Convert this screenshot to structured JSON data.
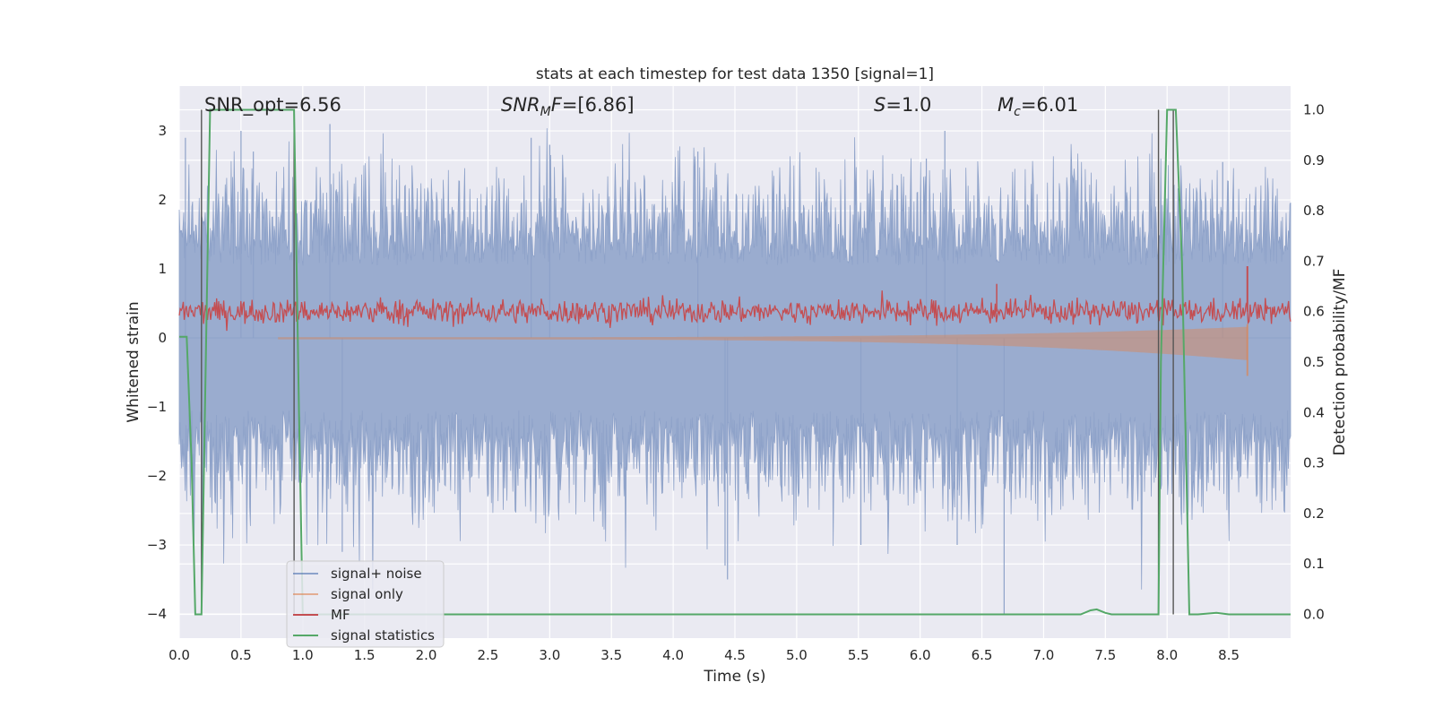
{
  "chart_data": {
    "type": "line",
    "title": "stats at each timestep for test data 1350 [signal=1]",
    "xlabel": "Time (s)",
    "ylabel_left": "Whitened strain",
    "ylabel_right": "Detection probability/MF",
    "xlim": [
      0.0,
      9.0
    ],
    "ylim_left": [
      -4.35,
      3.65
    ],
    "ylim_right": [
      -0.047,
      1.047
    ],
    "x_ticks": [
      "0.0",
      "0.5",
      "1.0",
      "1.5",
      "2.0",
      "2.5",
      "3.0",
      "3.5",
      "4.0",
      "4.5",
      "5.0",
      "5.5",
      "6.0",
      "6.5",
      "7.0",
      "7.5",
      "8.0",
      "8.5"
    ],
    "y_left_ticks": [
      "3",
      "2",
      "1",
      "0",
      "−1",
      "−2",
      "−3",
      "−4"
    ],
    "y_right_ticks": [
      "1.0",
      "0.9",
      "0.8",
      "0.7",
      "0.6",
      "0.5",
      "0.4",
      "0.3",
      "0.2",
      "0.1",
      "0.0"
    ],
    "grid": true,
    "legend_position": "lower-left",
    "annotations": {
      "snr_opt": "SNR_opt=6.56",
      "snr_mf_label": "SNR",
      "snr_mf_sub": "M",
      "snr_mf_rest": "F=[6.86]",
      "s_label": "S",
      "s_rest": "=1.0",
      "mc_label": "M",
      "mc_sub": "c",
      "mc_rest": "=6.01"
    },
    "series": [
      {
        "name": "signal+ noise",
        "color": "#4c72b0",
        "description_range": [
          -3.5,
          2.9
        ]
      },
      {
        "name": "signal only",
        "color": "#dd8452",
        "peak_time": 8.65,
        "peak_amplitude": -0.55
      },
      {
        "name": "MF",
        "color": "#c44e52",
        "baseline_right": 0.6,
        "peak_time": 8.65,
        "peak_value_right": 0.69
      },
      {
        "name": "signal statistics",
        "color": "#55a868",
        "x": [
          0.0,
          0.06,
          0.1,
          0.13,
          0.18,
          0.25,
          0.3,
          0.93,
          0.97,
          1.0,
          7.3,
          7.38,
          7.43,
          7.5,
          7.55,
          7.93,
          7.95,
          8.0,
          8.07,
          8.12,
          8.18,
          8.25,
          8.4,
          8.5,
          9.0
        ],
        "y": [
          0.55,
          0.55,
          0.3,
          0.0,
          0.0,
          1.0,
          1.0,
          1.0,
          0.4,
          0.0,
          0.0,
          0.008,
          0.01,
          0.003,
          0.0,
          0.0,
          0.5,
          1.0,
          1.0,
          0.7,
          0.0,
          0.0,
          0.003,
          0.0,
          0.0
        ]
      }
    ],
    "vertical_lines_x": [
      0.18,
      0.93,
      7.93,
      8.05
    ]
  }
}
